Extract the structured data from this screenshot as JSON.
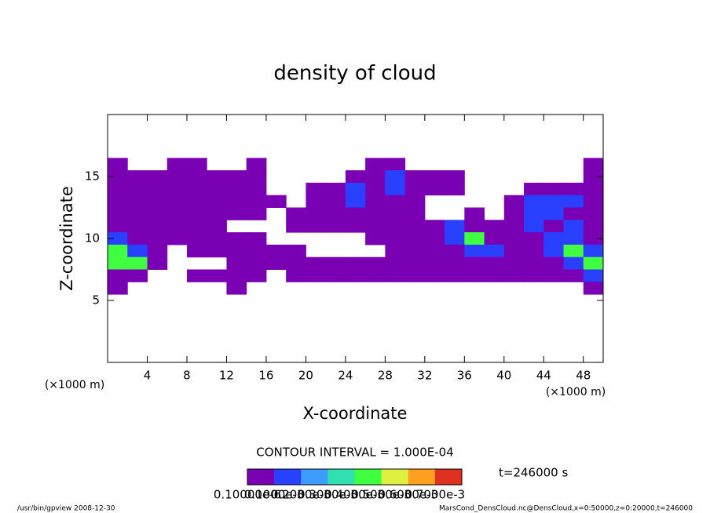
{
  "chart_data": {
    "type": "contour",
    "title": "density of cloud",
    "xlabel": "X-coordinate",
    "ylabel": "Z-coordinate",
    "x_unit_labels": [
      "(×1000 m)",
      "(×1000 m)"
    ],
    "contour_interval": "CONTOUR INTERVAL = 1.000E-04",
    "time_label": "t=246000 s",
    "footer_left": "/usr/bin/gpview  2008-12-30",
    "footer_right": "MarsCond_DensCloud.nc@DensCloud,x=0:50000,z=0:20000,t=246000",
    "xlim": [
      0,
      50
    ],
    "ylim": [
      0,
      20
    ],
    "xticks": [
      4,
      8,
      12,
      16,
      20,
      24,
      28,
      32,
      36,
      40,
      44,
      48
    ],
    "yticks": [
      5,
      10,
      15
    ],
    "x": [
      1,
      3,
      5,
      7,
      9,
      11,
      13,
      15,
      17,
      19,
      21,
      23,
      25,
      27,
      29,
      31,
      33,
      35,
      37,
      39,
      41,
      43,
      45,
      47,
      49
    ],
    "z": [
      16,
      15,
      14,
      13,
      12,
      11,
      10,
      9,
      8,
      7,
      6
    ],
    "values": [
      [
        2e-05,
        0,
        0,
        2e-05,
        2e-05,
        0,
        0,
        2e-05,
        0,
        0,
        0,
        0,
        0,
        2e-05,
        2e-05,
        0,
        0,
        0,
        0,
        0,
        0,
        0,
        0,
        0,
        2e-05
      ],
      [
        2e-05,
        2e-05,
        2e-05,
        2e-05,
        2e-05,
        2e-05,
        2e-05,
        2e-05,
        0,
        0,
        0,
        0,
        2e-05,
        2e-05,
        0.00015,
        2e-05,
        2e-05,
        2e-05,
        0,
        0,
        0,
        0,
        0,
        0,
        2e-05
      ],
      [
        2e-05,
        2e-05,
        2e-05,
        2e-05,
        2e-05,
        2e-05,
        2e-05,
        2e-05,
        0,
        0,
        2e-05,
        2e-05,
        0.00015,
        2e-05,
        0.00015,
        2e-05,
        2e-05,
        2e-05,
        0,
        0,
        0,
        2e-05,
        2e-05,
        2e-05,
        2e-05
      ],
      [
        2e-05,
        2e-05,
        2e-05,
        2e-05,
        2e-05,
        2e-05,
        2e-05,
        2e-05,
        2e-05,
        0,
        2e-05,
        2e-05,
        0.00015,
        2e-05,
        2e-05,
        2e-05,
        0,
        0,
        0,
        0,
        2e-05,
        0.00015,
        0.00015,
        0.00015,
        2e-05
      ],
      [
        2e-05,
        2e-05,
        2e-05,
        2e-05,
        2e-05,
        2e-05,
        2e-05,
        2e-05,
        0,
        2e-05,
        2e-05,
        2e-05,
        2e-05,
        2e-05,
        2e-05,
        2e-05,
        0,
        0,
        2e-05,
        0,
        2e-05,
        0.00015,
        0.00015,
        2e-05,
        2e-05
      ],
      [
        2e-05,
        2e-05,
        2e-05,
        2e-05,
        2e-05,
        2e-05,
        0,
        0,
        0,
        2e-05,
        2e-05,
        2e-05,
        2e-05,
        2e-05,
        2e-05,
        2e-05,
        2e-05,
        0.00015,
        2e-05,
        2e-05,
        2e-05,
        0.00015,
        2e-05,
        0.00015,
        2e-05
      ],
      [
        0.00015,
        2e-05,
        2e-05,
        2e-05,
        2e-05,
        2e-05,
        2e-05,
        2e-05,
        0,
        0,
        0,
        0,
        0,
        2e-05,
        2e-05,
        2e-05,
        2e-05,
        0.00015,
        0.0004,
        2e-05,
        2e-05,
        2e-05,
        0.00015,
        0.00015,
        2e-05
      ],
      [
        0.0004,
        0.00015,
        2e-05,
        0,
        2e-05,
        2e-05,
        2e-05,
        2e-05,
        2e-05,
        2e-05,
        0,
        0,
        0,
        0,
        2e-05,
        2e-05,
        2e-05,
        2e-05,
        0.00015,
        0.00015,
        2e-05,
        2e-05,
        0.00015,
        0.0004,
        0.00015
      ],
      [
        0.0004,
        0.0004,
        2e-05,
        0,
        0,
        0,
        2e-05,
        2e-05,
        2e-05,
        2e-05,
        2e-05,
        2e-05,
        2e-05,
        2e-05,
        2e-05,
        2e-05,
        2e-05,
        2e-05,
        2e-05,
        2e-05,
        2e-05,
        2e-05,
        2e-05,
        0.00015,
        0.0004
      ],
      [
        2e-05,
        2e-05,
        0,
        0,
        2e-05,
        2e-05,
        2e-05,
        2e-05,
        0,
        2e-05,
        2e-05,
        2e-05,
        2e-05,
        2e-05,
        2e-05,
        2e-05,
        2e-05,
        2e-05,
        2e-05,
        2e-05,
        2e-05,
        2e-05,
        2e-05,
        2e-05,
        0.00015
      ],
      [
        2e-05,
        0,
        0,
        0,
        0,
        0,
        2e-05,
        0,
        0,
        0,
        0,
        0,
        0,
        0,
        0,
        0,
        0,
        0,
        0,
        0,
        0,
        0,
        0,
        0,
        2e-05
      ]
    ],
    "colorbar_ticks": [
      {
        "value": 1e-07,
        "label": "0.10000e-6"
      },
      {
        "value": 0.0001,
        "label": "0.1000e-3"
      },
      {
        "value": 0.0002,
        "label": "0.2000e-3"
      },
      {
        "value": 0.0003,
        "label": "0.3000e-3"
      },
      {
        "value": 0.0004,
        "label": "0.4000e-3"
      },
      {
        "value": 0.0005,
        "label": "0.5000e-3"
      },
      {
        "value": 0.0006,
        "label": "0.6000e-3"
      },
      {
        "value": 0.0007,
        "label": "0.7000e-3"
      }
    ],
    "colors": [
      "#7a00b4",
      "#2a40ff",
      "#3c9cff",
      "#30e0b0",
      "#40ff40",
      "#e0f040",
      "#ffa020",
      "#e03020"
    ]
  }
}
